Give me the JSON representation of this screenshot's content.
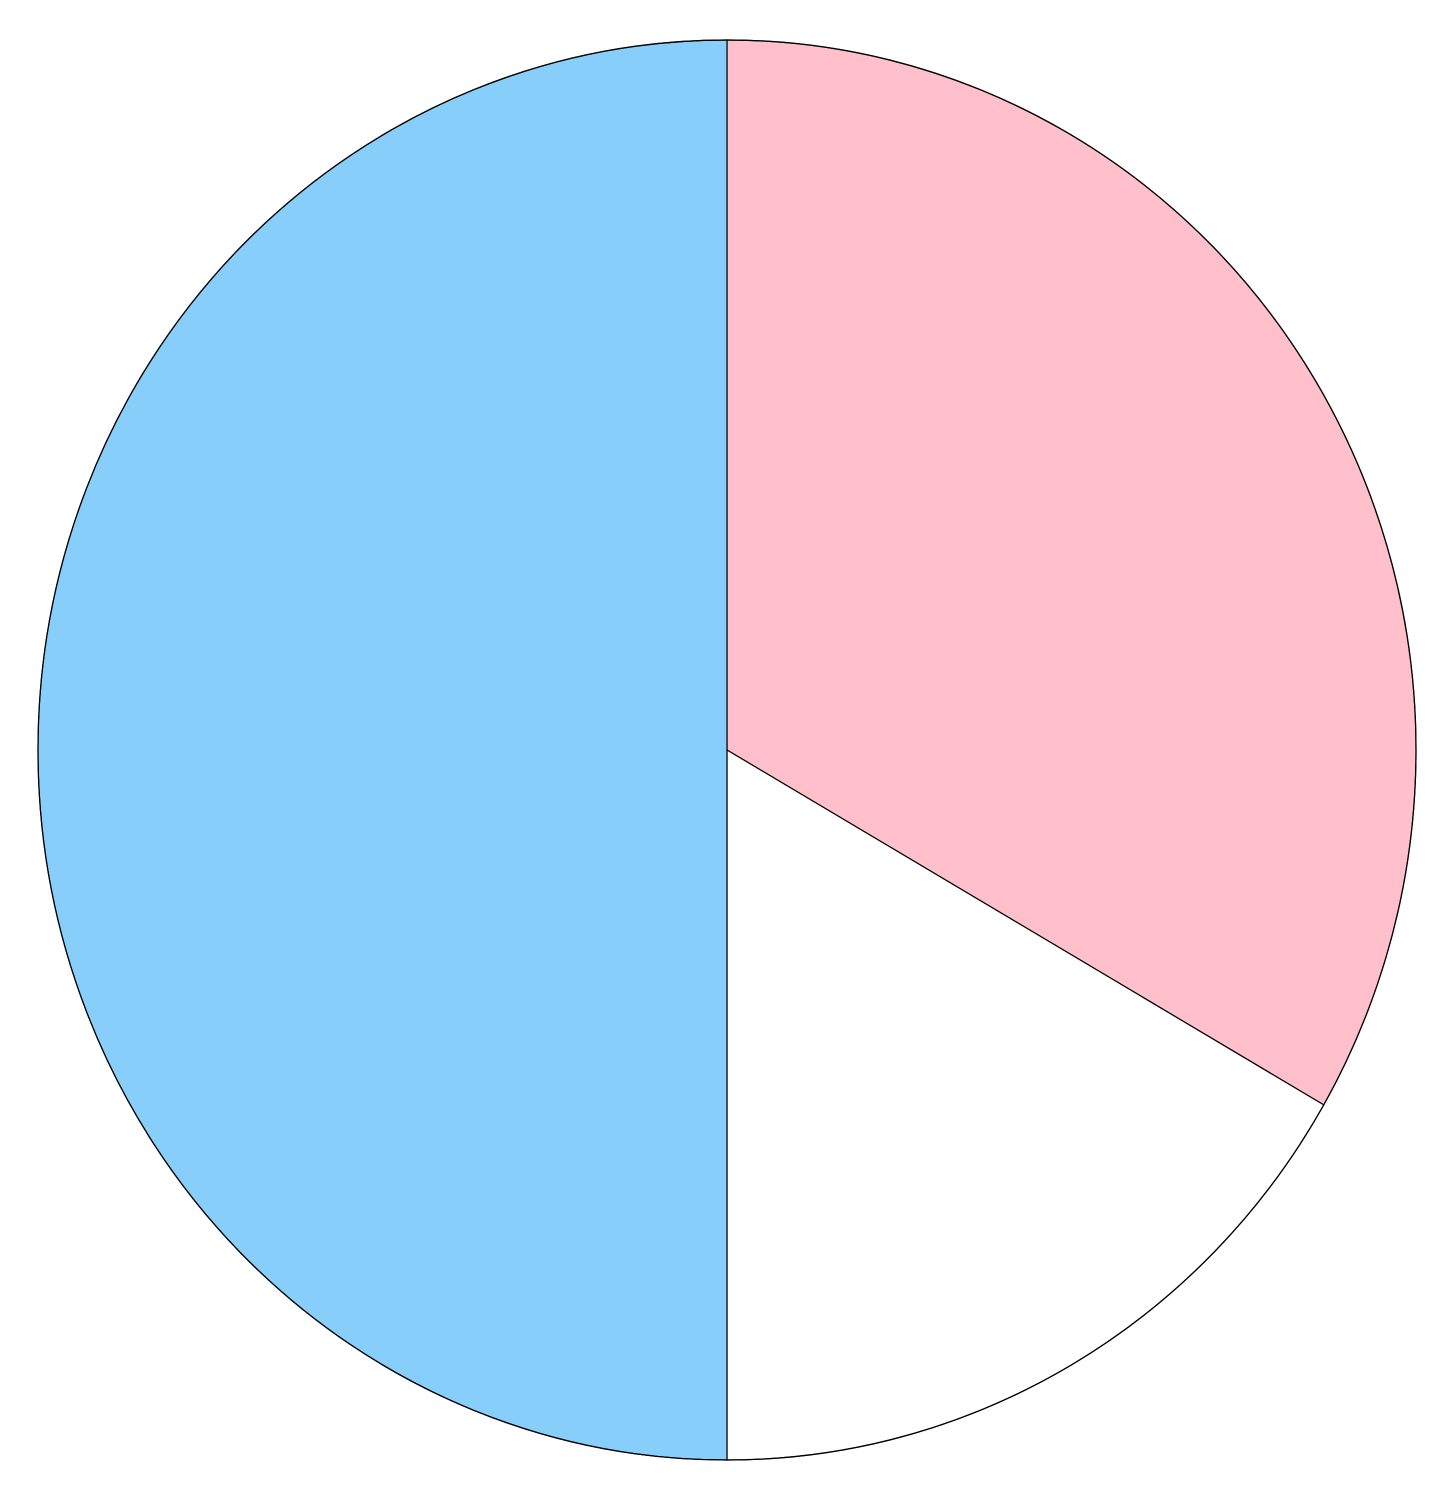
{
  "chart_data": {
    "type": "pie",
    "title": "",
    "start_angle": "12 o'clock",
    "direction": "clockwise",
    "legend": "none",
    "slices": [
      {
        "value": 0.3333,
        "color": "#FFC0CB"
      },
      {
        "value": 0.1667,
        "color": "#FFFFFF"
      },
      {
        "value": 0.5,
        "color": "#87CEFA"
      }
    ],
    "outline_color": "#000000"
  }
}
